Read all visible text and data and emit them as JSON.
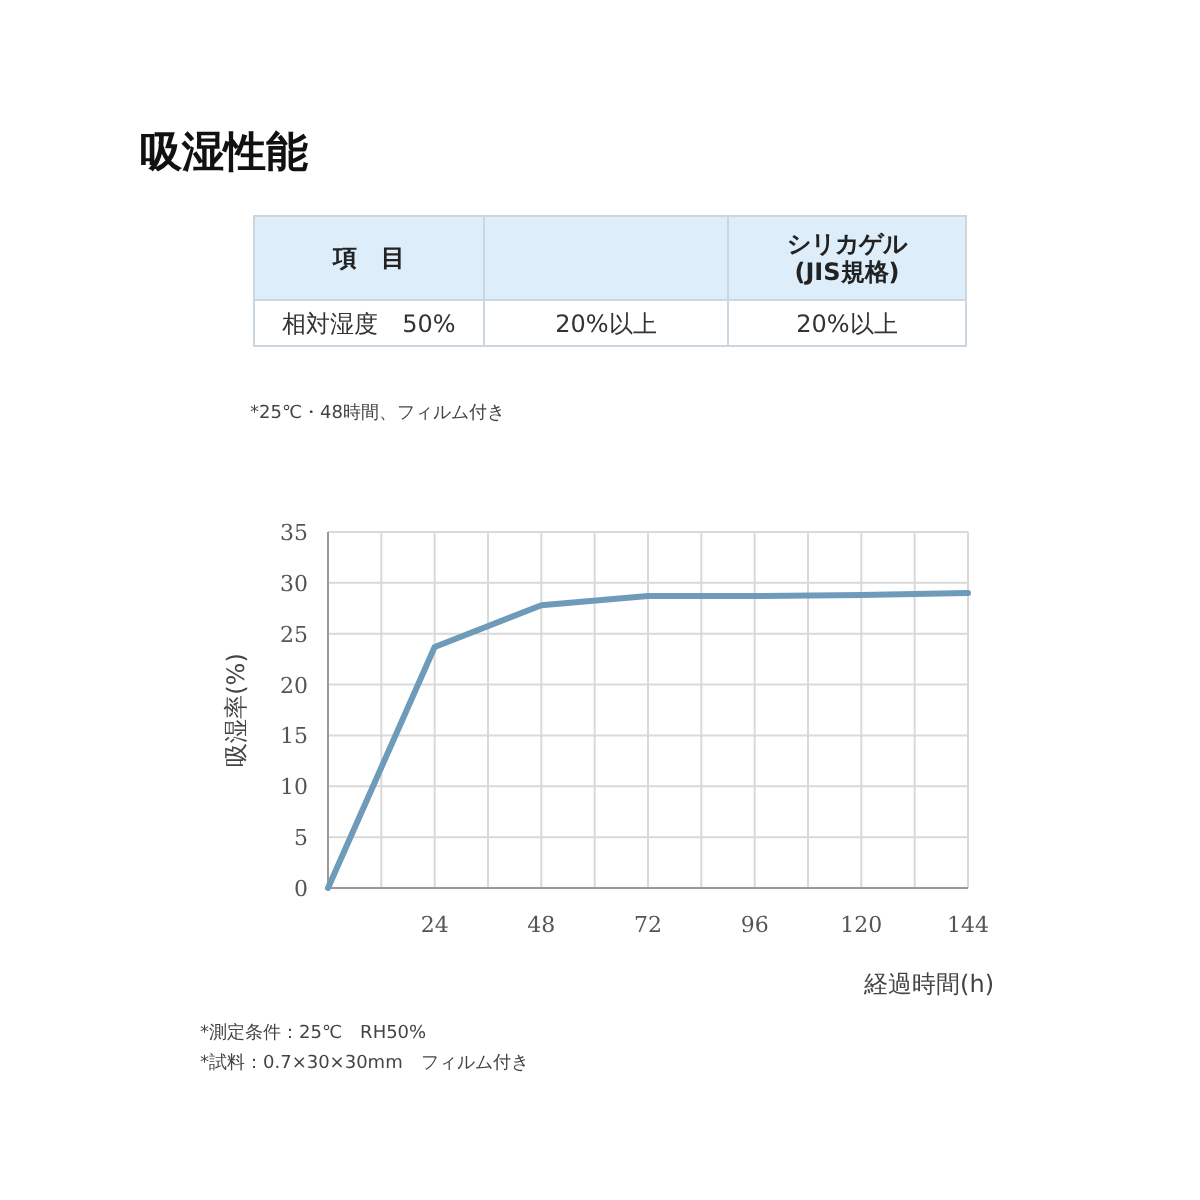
{
  "chart_data": [
    {
      "type": "other",
      "title": "吸湿性能",
      "categories": [
        "項　目",
        null,
        "シリカゲル\n(JIS規格)"
      ],
      "annotations": [
        "相対湿度　50%",
        "20%以上",
        "20%以上",
        "*25℃・48時間、フィルム付き"
      ]
    },
    {
      "type": "line",
      "x": [
        0,
        24,
        48,
        72,
        96,
        120,
        144
      ],
      "series": [
        {
          "color": "#6f9bbb",
          "values": [
            0,
            23.7,
            27.8,
            28.7,
            28.7,
            28.8,
            29.0
          ]
        }
      ],
      "xlim": [
        0,
        144
      ],
      "xticks": [
        {
          "value": 0,
          "label": null
        },
        {
          "value": 12,
          "label": null
        },
        24,
        {
          "value": 36,
          "label": null
        },
        48,
        {
          "value": 60,
          "label": null
        },
        72,
        {
          "value": 84,
          "label": null
        },
        96,
        {
          "value": 108,
          "label": null
        },
        120,
        {
          "value": 132,
          "label": null
        },
        144
      ],
      "ylim": [
        0,
        35
      ],
      "yticks": [
        0,
        5,
        10,
        15,
        20,
        25,
        30,
        35
      ],
      "grid": true,
      "marker": "none",
      "line_style": "solid",
      "xlabel": "経過時間(h)",
      "ylabel": "吸湿率(%)",
      "annotations": [
        "*測定条件：25℃　RH50%",
        "*試料：0.7×30×30mm　フィルム付き"
      ]
    }
  ]
}
